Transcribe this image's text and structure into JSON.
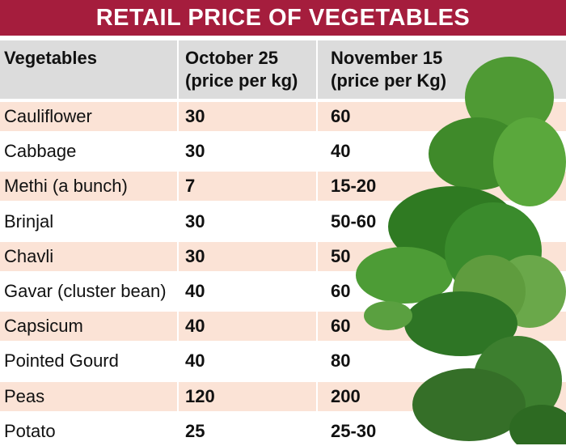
{
  "title": "RETAIL PRICE OF VEGETABLES",
  "columns": {
    "vegetables": "Vegetables",
    "oct_line1": "October 25",
    "oct_line2": "(price per kg)",
    "nov_line1": "November 15",
    "nov_line2": "(price per Kg)"
  },
  "rows": [
    {
      "name": "Cauliflower",
      "oct": "30",
      "nov": "60"
    },
    {
      "name": "Cabbage",
      "oct": "30",
      "nov": "40"
    },
    {
      "name": "Methi (a bunch)",
      "oct": "7",
      "nov": "15-20"
    },
    {
      "name": "Brinjal",
      "oct": "30",
      "nov": "50-60"
    },
    {
      "name": "Chavli",
      "oct": "30",
      "nov": "50"
    },
    {
      "name": "Gavar (cluster bean)",
      "oct": "40",
      "nov": "60"
    },
    {
      "name": "Capsicum",
      "oct": "40",
      "nov": "60"
    },
    {
      "name": "Pointed Gourd",
      "oct": "40",
      "nov": "80"
    },
    {
      "name": "Peas",
      "oct": "120",
      "nov": "200"
    },
    {
      "name": "Potato",
      "oct": "25",
      "nov": "25-30"
    }
  ],
  "colors": {
    "title_bg": "#a51d3d",
    "header_bg": "#dcdcdc",
    "row_alt_bg": "#fbe3d6",
    "leaf_green": "#3f8a2a"
  }
}
